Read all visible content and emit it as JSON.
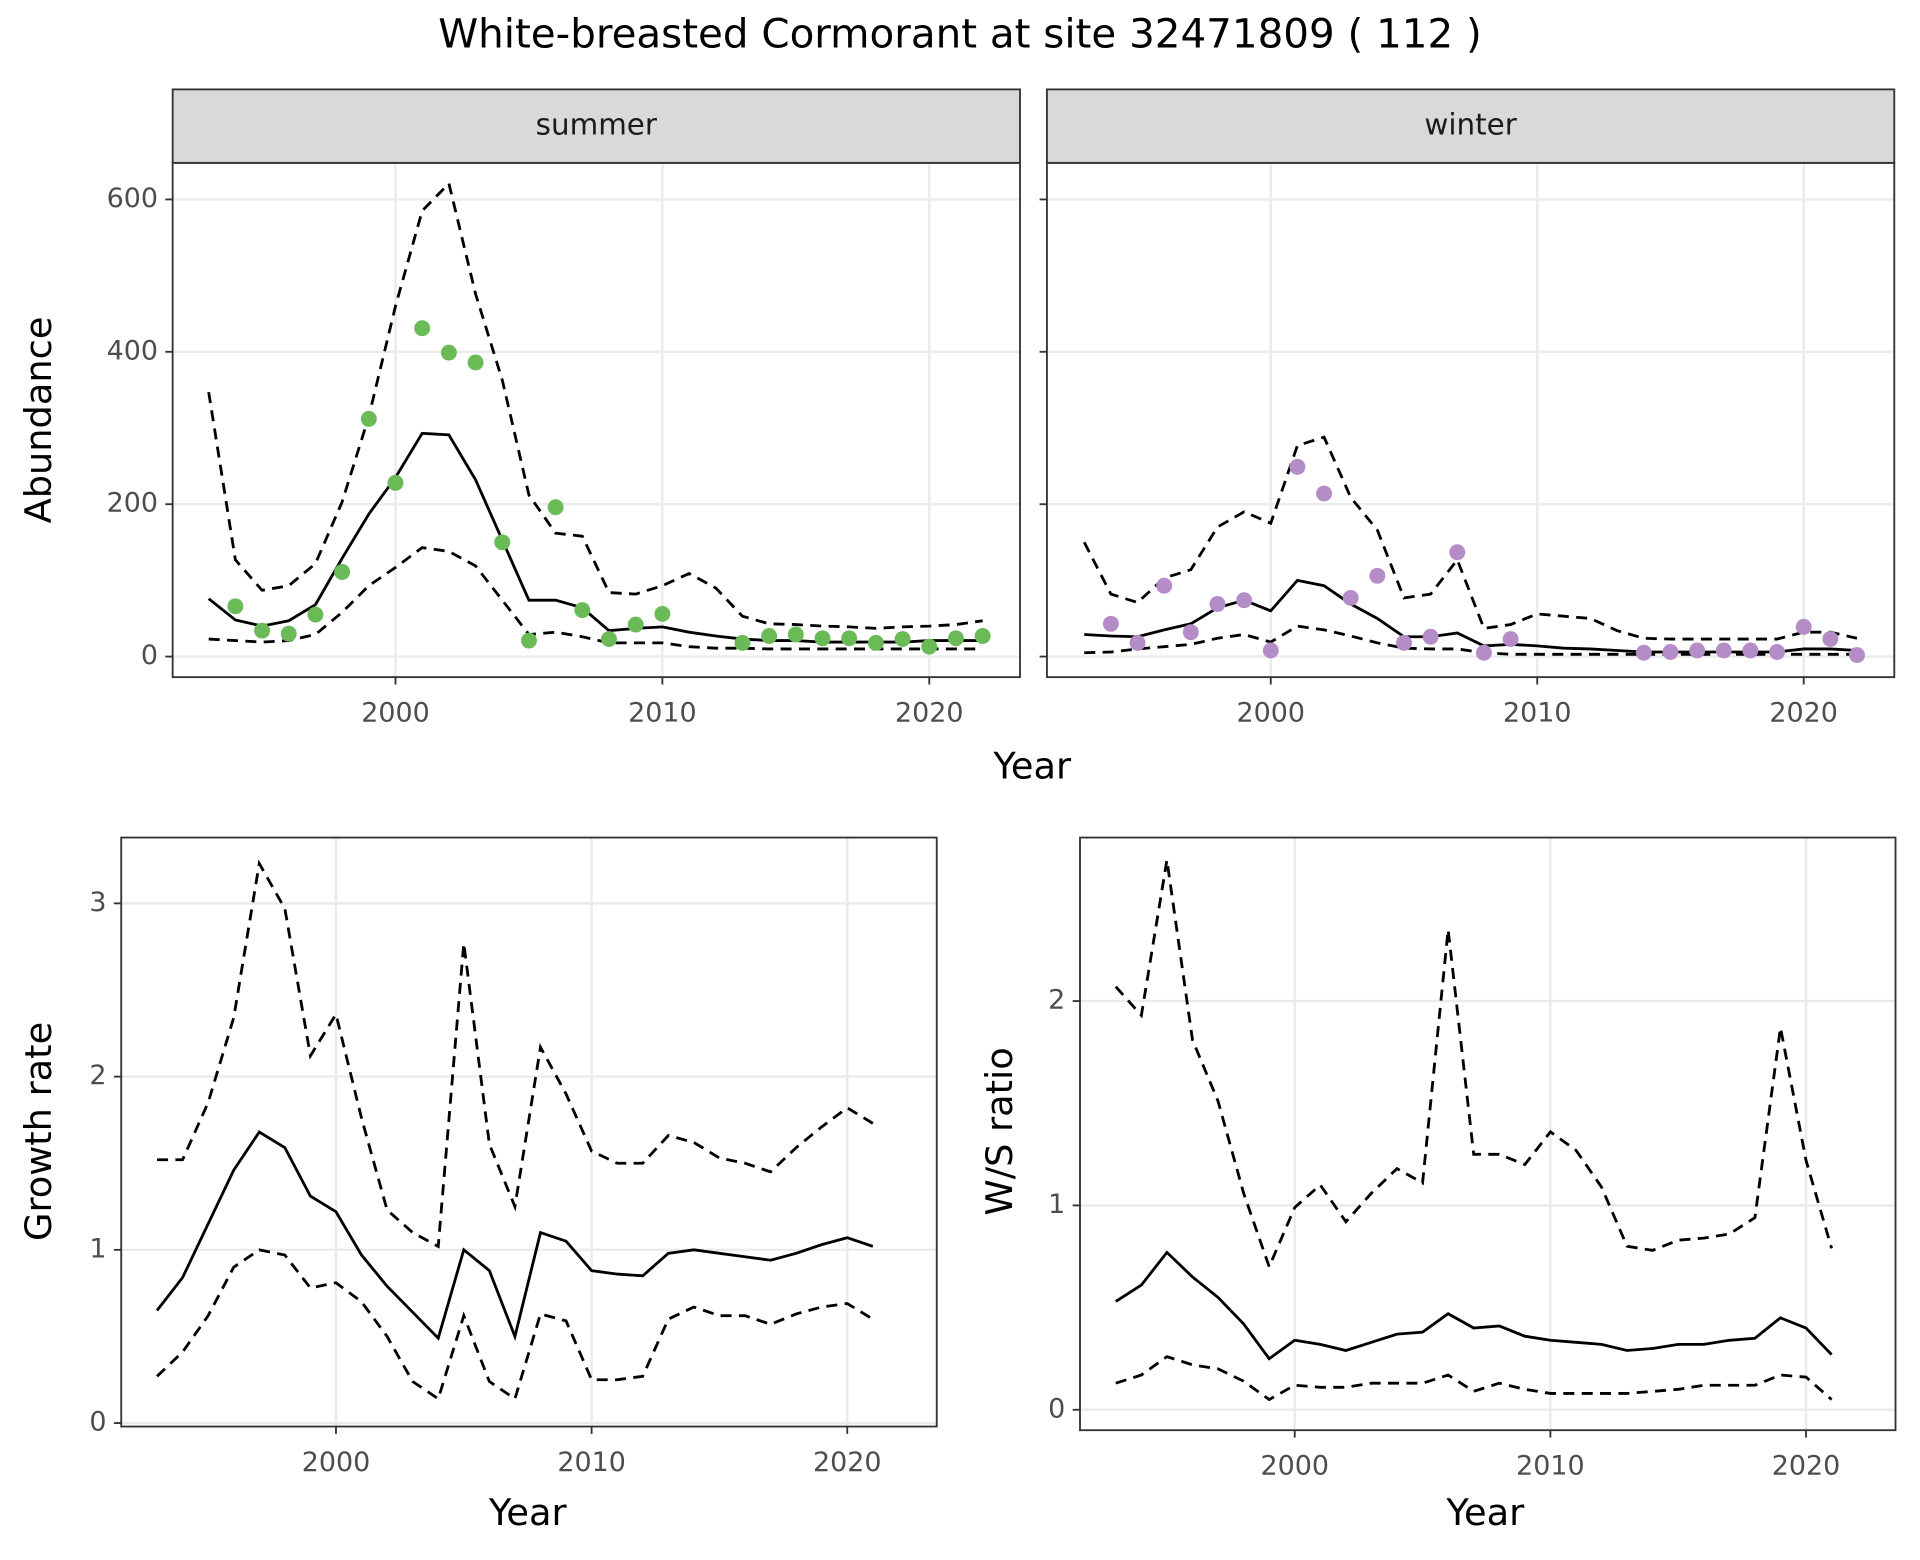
{
  "title": "White-breasted Cormorant at site 32471809 ( 112 )",
  "chart_data": [
    {
      "type": "line",
      "facet": "summer",
      "xlabel": "Year",
      "ylabel": "Abundance",
      "grid": true,
      "x": [
        1993,
        1994,
        1995,
        1996,
        1997,
        1998,
        1999,
        2000,
        2001,
        2002,
        2003,
        2004,
        2005,
        2006,
        2007,
        2008,
        2009,
        2010,
        2011,
        2012,
        2013,
        2014,
        2015,
        2016,
        2017,
        2018,
        2019,
        2020,
        2021,
        2022
      ],
      "xlim": [
        1991.65,
        2023.4
      ],
      "ylim": [
        -27,
        648
      ],
      "xticks": [
        2000,
        2010,
        2020
      ],
      "yticks": [
        0,
        200,
        400,
        600
      ],
      "series": [
        {
          "mark": "line",
          "dashed": false,
          "color": "#000000",
          "values": [
            76,
            48,
            40,
            47,
            68,
            129,
            187,
            235,
            293,
            291,
            232,
            153,
            74,
            74,
            64,
            34,
            37,
            39,
            32,
            27,
            23,
            21,
            21,
            19,
            19,
            19,
            19,
            21,
            21,
            21
          ]
        },
        {
          "mark": "line",
          "dashed": true,
          "color": "#000000",
          "values": [
            347,
            127,
            87,
            93,
            122,
            203,
            315,
            460,
            585,
            621,
            476,
            363,
            212,
            162,
            158,
            84,
            82,
            93,
            109,
            90,
            53,
            43,
            42,
            40,
            39,
            37,
            39,
            40,
            42,
            47
          ]
        },
        {
          "mark": "line",
          "dashed": true,
          "color": "#000000",
          "values": [
            23,
            21,
            19,
            21,
            29,
            58,
            93,
            117,
            143,
            138,
            119,
            74,
            29,
            32,
            26,
            18,
            18,
            18,
            13,
            11,
            11,
            10,
            10,
            10,
            10,
            10,
            10,
            10,
            10,
            10
          ]
        },
        {
          "mark": "point",
          "color": "#6abb58",
          "values": [
            null,
            66,
            34,
            30,
            55,
            111,
            312,
            228,
            431,
            399,
            386,
            150,
            21,
            196,
            61,
            23,
            42,
            56,
            null,
            null,
            18,
            27,
            29,
            24,
            24,
            18,
            23,
            13,
            24,
            27
          ]
        }
      ]
    },
    {
      "type": "line",
      "facet": "winter",
      "grid": true,
      "x": [
        1993,
        1994,
        1995,
        1996,
        1997,
        1998,
        1999,
        2000,
        2001,
        2002,
        2003,
        2004,
        2005,
        2006,
        2007,
        2008,
        2009,
        2010,
        2011,
        2012,
        2013,
        2014,
        2015,
        2016,
        2017,
        2018,
        2019,
        2020,
        2021,
        2022
      ],
      "xlim": [
        1991.6,
        2023.4
      ],
      "ylim": [
        -27,
        648
      ],
      "xticks": [
        2000,
        2010,
        2020
      ],
      "yticks": [
        0,
        200,
        400,
        600
      ],
      "series": [
        {
          "mark": "line",
          "dashed": false,
          "color": "#000000",
          "values": [
            29,
            27,
            26,
            35,
            43,
            64,
            74,
            60,
            100,
            93,
            69,
            50,
            26,
            26,
            31,
            14,
            16,
            14,
            11,
            10,
            8,
            6,
            6,
            6,
            6,
            6,
            6,
            10,
            10,
            8
          ]
        },
        {
          "mark": "line",
          "dashed": true,
          "color": "#000000",
          "values": [
            150,
            82,
            71,
            103,
            114,
            170,
            190,
            175,
            277,
            288,
            209,
            166,
            77,
            82,
            127,
            37,
            42,
            56,
            53,
            50,
            34,
            24,
            23,
            23,
            23,
            23,
            23,
            32,
            32,
            24
          ]
        },
        {
          "mark": "line",
          "dashed": true,
          "color": "#000000",
          "values": [
            5,
            6,
            10,
            13,
            16,
            24,
            29,
            19,
            40,
            35,
            27,
            18,
            11,
            10,
            10,
            5,
            3,
            3,
            3,
            3,
            3,
            3,
            3,
            3,
            3,
            3,
            3,
            3,
            3,
            3
          ]
        },
        {
          "mark": "point",
          "color": "#b48cc8",
          "values": [
            null,
            43,
            18,
            93,
            32,
            69,
            74,
            8,
            249,
            214,
            77,
            106,
            18,
            26,
            137,
            5,
            23,
            null,
            null,
            null,
            null,
            5,
            6,
            8,
            8,
            8,
            6,
            39,
            23,
            2
          ]
        }
      ]
    },
    {
      "type": "line",
      "xlabel": "Year",
      "ylabel": "Growth rate",
      "grid": true,
      "x": [
        1993,
        1994,
        1995,
        1996,
        1997,
        1998,
        1999,
        2000,
        2001,
        2002,
        2003,
        2004,
        2005,
        2006,
        2007,
        2008,
        2009,
        2010,
        2011,
        2012,
        2013,
        2014,
        2015,
        2016,
        2017,
        2018,
        2019,
        2020,
        2021
      ],
      "xlim": [
        1991.6,
        2023.5
      ],
      "ylim": [
        -0.02,
        3.38
      ],
      "xticks": [
        2000,
        2010,
        2020
      ],
      "yticks": [
        0,
        1,
        2,
        3
      ],
      "series": [
        {
          "mark": "line",
          "dashed": false,
          "color": "#000000",
          "values": [
            0.65,
            0.84,
            1.15,
            1.46,
            1.68,
            1.59,
            1.31,
            1.22,
            0.97,
            0.79,
            0.64,
            0.49,
            1.0,
            0.88,
            0.5,
            1.1,
            1.05,
            0.88,
            0.86,
            0.85,
            0.98,
            1.0,
            0.98,
            0.96,
            0.94,
            0.98,
            1.03,
            1.07,
            1.02
          ]
        },
        {
          "mark": "line",
          "dashed": true,
          "color": "#000000",
          "values": [
            1.52,
            1.52,
            1.85,
            2.34,
            3.23,
            2.97,
            2.12,
            2.36,
            1.76,
            1.23,
            1.1,
            1.02,
            2.77,
            1.61,
            1.25,
            2.17,
            1.9,
            1.57,
            1.5,
            1.5,
            1.66,
            1.62,
            1.53,
            1.5,
            1.45,
            1.59,
            1.71,
            1.82,
            1.73
          ]
        },
        {
          "mark": "line",
          "dashed": true,
          "color": "#000000",
          "values": [
            0.27,
            0.41,
            0.62,
            0.9,
            1.0,
            0.97,
            0.78,
            0.81,
            0.7,
            0.5,
            0.24,
            0.14,
            0.62,
            0.24,
            0.14,
            0.63,
            0.59,
            0.25,
            0.25,
            0.27,
            0.6,
            0.67,
            0.62,
            0.62,
            0.57,
            0.63,
            0.67,
            0.69,
            0.6
          ]
        }
      ]
    },
    {
      "type": "line",
      "xlabel": "Year",
      "ylabel": "W/S ratio",
      "grid": true,
      "x": [
        1993,
        1994,
        1995,
        1996,
        1997,
        1998,
        1999,
        2000,
        2001,
        2002,
        2003,
        2004,
        2005,
        2006,
        2007,
        2008,
        2009,
        2010,
        2011,
        2012,
        2013,
        2014,
        2015,
        2016,
        2017,
        2018,
        2019,
        2020,
        2021
      ],
      "xlim": [
        1991.6,
        2023.5
      ],
      "ylim": [
        -0.1,
        2.8
      ],
      "xticks": [
        2000,
        2010,
        2020
      ],
      "yticks": [
        0,
        1,
        2
      ],
      "series": [
        {
          "mark": "line",
          "dashed": false,
          "color": "#000000",
          "values": [
            0.53,
            0.61,
            0.77,
            0.65,
            0.55,
            0.42,
            0.25,
            0.34,
            0.32,
            0.29,
            0.33,
            0.37,
            0.38,
            0.47,
            0.4,
            0.41,
            0.36,
            0.34,
            0.33,
            0.32,
            0.29,
            0.3,
            0.32,
            0.32,
            0.34,
            0.35,
            0.45,
            0.4,
            0.27
          ]
        },
        {
          "mark": "line",
          "dashed": true,
          "color": "#000000",
          "values": [
            2.07,
            1.93,
            2.69,
            1.81,
            1.51,
            1.06,
            0.7,
            0.99,
            1.1,
            0.92,
            1.06,
            1.18,
            1.11,
            2.35,
            1.25,
            1.25,
            1.2,
            1.36,
            1.27,
            1.09,
            0.8,
            0.78,
            0.83,
            0.84,
            0.86,
            0.94,
            1.87,
            1.22,
            0.79
          ]
        },
        {
          "mark": "line",
          "dashed": true,
          "color": "#000000",
          "values": [
            0.13,
            0.17,
            0.26,
            0.22,
            0.2,
            0.14,
            0.05,
            0.12,
            0.11,
            0.11,
            0.13,
            0.13,
            0.13,
            0.17,
            0.09,
            0.13,
            0.1,
            0.08,
            0.08,
            0.08,
            0.08,
            0.09,
            0.1,
            0.12,
            0.12,
            0.12,
            0.17,
            0.16,
            0.05
          ]
        }
      ]
    }
  ]
}
